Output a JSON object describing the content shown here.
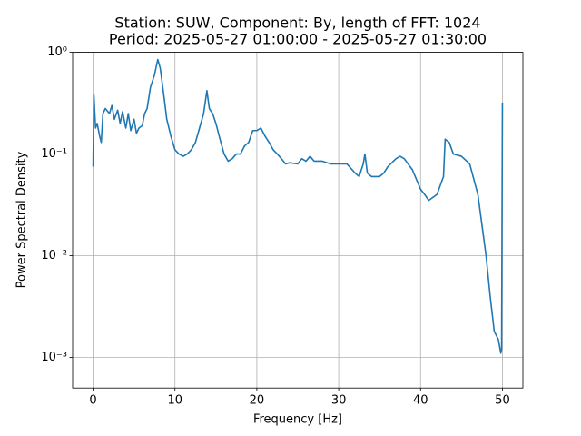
{
  "chart_data": {
    "type": "line",
    "title": "Station: SUW, Component: By, length of FFT: 1024",
    "subtitle": "Period: 2025-05-27 01:00:00 - 2025-05-27 01:30:00",
    "xlabel": "Frequency [Hz]",
    "ylabel": "Power Spectral Density",
    "x": [
      0,
      0.1,
      0.3,
      0.5,
      0.8,
      1.0,
      1.2,
      1.5,
      2.0,
      2.3,
      2.6,
      3.0,
      3.3,
      3.6,
      4.0,
      4.3,
      4.6,
      5.0,
      5.3,
      5.6,
      6.0,
      6.3,
      6.6,
      7.0,
      7.5,
      7.9,
      8.2,
      8.6,
      9.0,
      9.5,
      10.0,
      10.5,
      11.0,
      11.5,
      12.0,
      12.5,
      13.0,
      13.5,
      13.9,
      14.2,
      14.6,
      15.0,
      15.5,
      16.0,
      16.5,
      17.0,
      17.5,
      18.0,
      18.5,
      19.0,
      19.5,
      20.0,
      20.5,
      21.0,
      21.5,
      22.0,
      22.5,
      23.0,
      23.5,
      24.0,
      25.0,
      25.5,
      26.0,
      26.5,
      27.0,
      28.0,
      29.0,
      30.0,
      31.0,
      32.0,
      32.5,
      33.0,
      33.2,
      33.5,
      34.0,
      35.0,
      35.5,
      36.0,
      37.0,
      37.5,
      38.0,
      39.0,
      40.0,
      40.5,
      41.0,
      42.0,
      42.8,
      43.0,
      43.5,
      44.0,
      45.0,
      46.0,
      47.0,
      48.0,
      48.5,
      49.0,
      49.5,
      49.8,
      49.9,
      50.0
    ],
    "values": [
      0.075,
      0.38,
      0.18,
      0.2,
      0.15,
      0.13,
      0.25,
      0.28,
      0.25,
      0.3,
      0.22,
      0.27,
      0.2,
      0.26,
      0.18,
      0.25,
      0.17,
      0.22,
      0.16,
      0.18,
      0.19,
      0.25,
      0.28,
      0.45,
      0.6,
      0.85,
      0.7,
      0.4,
      0.22,
      0.15,
      0.11,
      0.1,
      0.095,
      0.1,
      0.11,
      0.13,
      0.18,
      0.25,
      0.42,
      0.28,
      0.25,
      0.2,
      0.14,
      0.1,
      0.085,
      0.09,
      0.1,
      0.1,
      0.12,
      0.13,
      0.17,
      0.17,
      0.18,
      0.15,
      0.13,
      0.11,
      0.1,
      0.09,
      0.08,
      0.082,
      0.08,
      0.09,
      0.085,
      0.095,
      0.085,
      0.085,
      0.08,
      0.08,
      0.08,
      0.065,
      0.06,
      0.08,
      0.1,
      0.065,
      0.06,
      0.06,
      0.065,
      0.075,
      0.09,
      0.095,
      0.09,
      0.07,
      0.045,
      0.04,
      0.035,
      0.04,
      0.06,
      0.14,
      0.13,
      0.1,
      0.095,
      0.08,
      0.04,
      0.01,
      0.004,
      0.0018,
      0.0015,
      0.0011,
      0.0012,
      0.32
    ],
    "color": "#1f77b4",
    "log_y": true,
    "grid": true,
    "xlim": [
      -2.5,
      52.5
    ],
    "xticks": [
      0,
      10,
      20,
      30,
      40,
      50
    ],
    "ylim": [
      0.0005,
      1
    ],
    "yticks": [
      {
        "value": 0.001,
        "label": "10⁻³"
      },
      {
        "value": 0.01,
        "label": "10⁻²"
      },
      {
        "value": 0.1,
        "label": "10⁻¹"
      },
      {
        "value": 1,
        "label": "10⁰"
      }
    ]
  }
}
